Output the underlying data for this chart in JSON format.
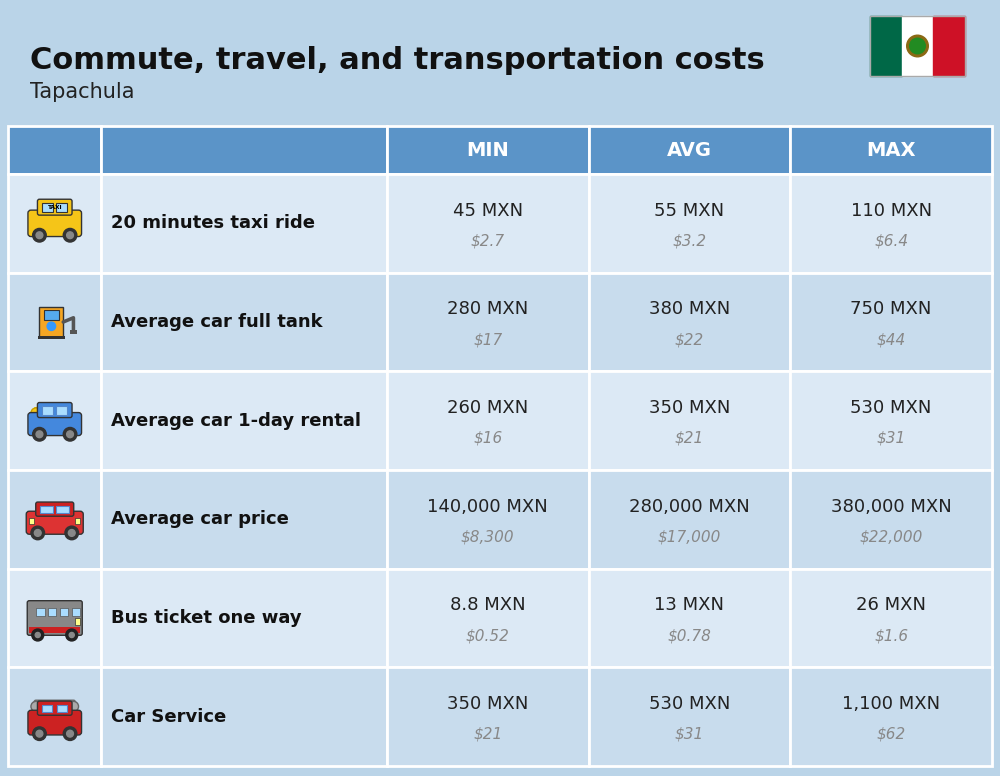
{
  "title": "Commute, travel, and transportation costs",
  "subtitle": "Tapachula",
  "background_color": "#bad4e8",
  "header_color": "#5b94c8",
  "row_color_even": "#dce9f5",
  "row_color_odd": "#c8dced",
  "header_text_color": "#ffffff",
  "col_headers": [
    "MIN",
    "AVG",
    "MAX"
  ],
  "rows": [
    {
      "label": "20 minutes taxi ride",
      "min_mxn": "45 MXN",
      "min_usd": "$2.7",
      "avg_mxn": "55 MXN",
      "avg_usd": "$3.2",
      "max_mxn": "110 MXN",
      "max_usd": "$6.4"
    },
    {
      "label": "Average car full tank",
      "min_mxn": "280 MXN",
      "min_usd": "$17",
      "avg_mxn": "380 MXN",
      "avg_usd": "$22",
      "max_mxn": "750 MXN",
      "max_usd": "$44"
    },
    {
      "label": "Average car 1-day rental",
      "min_mxn": "260 MXN",
      "min_usd": "$16",
      "avg_mxn": "350 MXN",
      "avg_usd": "$21",
      "max_mxn": "530 MXN",
      "max_usd": "$31"
    },
    {
      "label": "Average car price",
      "min_mxn": "140,000 MXN",
      "min_usd": "$8,300",
      "avg_mxn": "280,000 MXN",
      "avg_usd": "$17,000",
      "max_mxn": "380,000 MXN",
      "max_usd": "$22,000"
    },
    {
      "label": "Bus ticket one way",
      "min_mxn": "8.8 MXN",
      "min_usd": "$0.52",
      "avg_mxn": "13 MXN",
      "avg_usd": "$0.78",
      "max_mxn": "26 MXN",
      "max_usd": "$1.6"
    },
    {
      "label": "Car Service",
      "min_mxn": "350 MXN",
      "min_usd": "$21",
      "avg_mxn": "530 MXN",
      "avg_usd": "$31",
      "max_mxn": "1,100 MXN",
      "max_usd": "$62"
    }
  ]
}
